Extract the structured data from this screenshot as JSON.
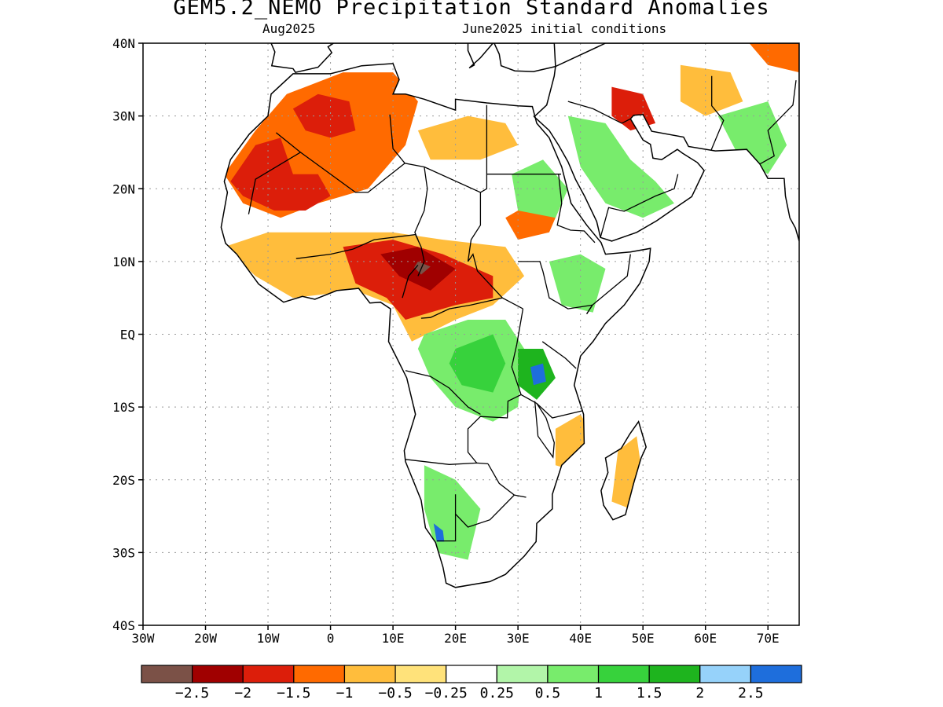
{
  "header": {
    "title": "GEM5.2_NEMO Precipitation Standard Anomalies",
    "month": "Aug2025",
    "init": "June2025 initial conditions"
  },
  "map": {
    "lon_range": [
      -30,
      75
    ],
    "lat_range": [
      -40,
      40
    ],
    "grid": true,
    "lat_labels": [
      {
        "lat": 40,
        "label": "40N"
      },
      {
        "lat": 30,
        "label": "30N"
      },
      {
        "lat": 20,
        "label": "20N"
      },
      {
        "lat": 10,
        "label": "10N"
      },
      {
        "lat": 0,
        "label": "EQ"
      },
      {
        "lat": -10,
        "label": "10S"
      },
      {
        "lat": -20,
        "label": "20S"
      },
      {
        "lat": -30,
        "label": "30S"
      },
      {
        "lat": -40,
        "label": "40S"
      }
    ],
    "lon_labels": [
      {
        "lon": -30,
        "label": "30W"
      },
      {
        "lon": -20,
        "label": "20W"
      },
      {
        "lon": -10,
        "label": "10W"
      },
      {
        "lon": 0,
        "label": "0"
      },
      {
        "lon": 10,
        "label": "10E"
      },
      {
        "lon": 20,
        "label": "20E"
      },
      {
        "lon": 30,
        "label": "30E"
      },
      {
        "lon": 40,
        "label": "40E"
      },
      {
        "lon": 50,
        "label": "50E"
      },
      {
        "lon": 60,
        "label": "60E"
      },
      {
        "lon": 70,
        "label": "70E"
      }
    ],
    "land_fill": "#ffffff",
    "coast_color": "#000000"
  },
  "colorbar": {
    "colors": [
      "#7b5147",
      "#a00000",
      "#dc1e0a",
      "#ff6a00",
      "#ffbd3c",
      "#ffe27a",
      "#ffffff",
      "#b2f5a9",
      "#78ec6c",
      "#37d23c",
      "#1eb41e",
      "#96d2fa",
      "#1e6edc"
    ],
    "labels": [
      "-2.5",
      "-2",
      "-1.5",
      "-1",
      "-0.5",
      "-0.25",
      "0.25",
      "0.5",
      "1",
      "1.5",
      "2",
      "2.5"
    ]
  },
  "anomaly_regions": [
    {
      "level": -1.0,
      "color": "#ff6a00",
      "points": [
        [
          -17,
          22
        ],
        [
          -12,
          28
        ],
        [
          -7,
          33
        ],
        [
          2,
          36
        ],
        [
          10,
          36
        ],
        [
          14,
          32
        ],
        [
          12,
          26
        ],
        [
          6,
          20
        ],
        [
          -2,
          18
        ],
        [
          -8,
          16
        ],
        [
          -14,
          18
        ]
      ]
    },
    {
      "level": -1.5,
      "color": "#dc1e0a",
      "points": [
        [
          -16,
          21
        ],
        [
          -12,
          26
        ],
        [
          -8,
          27
        ],
        [
          -6,
          22
        ],
        [
          -2,
          22
        ],
        [
          0,
          19
        ],
        [
          -4,
          17
        ],
        [
          -9,
          17
        ],
        [
          -14,
          19
        ]
      ]
    },
    {
      "level": -1.5,
      "color": "#dc1e0a",
      "points": [
        [
          -6,
          31
        ],
        [
          -2,
          33
        ],
        [
          3,
          32
        ],
        [
          4,
          28
        ],
        [
          0,
          27
        ],
        [
          -4,
          28
        ]
      ]
    },
    {
      "level": -0.5,
      "color": "#ffbd3c",
      "points": [
        [
          -17,
          12
        ],
        [
          -10,
          14
        ],
        [
          0,
          14
        ],
        [
          10,
          14
        ],
        [
          18,
          13
        ],
        [
          28,
          12
        ],
        [
          31,
          8
        ],
        [
          26,
          4
        ],
        [
          20,
          2
        ],
        [
          13,
          -1
        ],
        [
          10,
          4
        ],
        [
          4,
          6
        ],
        [
          -6,
          5
        ],
        [
          -12,
          8
        ]
      ]
    },
    {
      "level": -1.5,
      "color": "#dc1e0a",
      "points": [
        [
          2,
          12
        ],
        [
          10,
          13
        ],
        [
          18,
          11
        ],
        [
          26,
          8
        ],
        [
          26,
          5
        ],
        [
          20,
          4
        ],
        [
          12,
          2
        ],
        [
          9,
          5
        ],
        [
          4,
          7
        ]
      ]
    },
    {
      "level": -2.0,
      "color": "#a00000",
      "points": [
        [
          8,
          11
        ],
        [
          14,
          12
        ],
        [
          20,
          9
        ],
        [
          16,
          6
        ],
        [
          11,
          8
        ]
      ]
    },
    {
      "level": -2.5,
      "color": "#7b5147",
      "points": [
        [
          14,
          10
        ],
        [
          16,
          9.3
        ],
        [
          14.5,
          8.2
        ],
        [
          13.4,
          9.2
        ]
      ]
    },
    {
      "level": -0.5,
      "color": "#ffbd3c",
      "points": [
        [
          14,
          28
        ],
        [
          22,
          30
        ],
        [
          28,
          29
        ],
        [
          30,
          26
        ],
        [
          24,
          24
        ],
        [
          16,
          24
        ]
      ]
    },
    {
      "level": -1.0,
      "color": "#ff6a00",
      "points": [
        [
          28,
          16
        ],
        [
          34,
          19
        ],
        [
          37,
          18
        ],
        [
          35,
          14
        ],
        [
          30,
          13
        ]
      ]
    },
    {
      "level": 1.0,
      "color": "#78ec6c",
      "points": [
        [
          15,
          0
        ],
        [
          22,
          2
        ],
        [
          28,
          2
        ],
        [
          31,
          -2
        ],
        [
          30,
          -10
        ],
        [
          26,
          -12
        ],
        [
          20,
          -10
        ],
        [
          16,
          -6
        ],
        [
          14,
          -2
        ]
      ]
    },
    {
      "level": 1.5,
      "color": "#37d23c",
      "points": [
        [
          20,
          -2
        ],
        [
          26,
          0
        ],
        [
          28,
          -4
        ],
        [
          26,
          -8
        ],
        [
          21,
          -7
        ],
        [
          19,
          -4
        ]
      ]
    },
    {
      "level": 2.0,
      "color": "#1eb41e",
      "points": [
        [
          30,
          -2
        ],
        [
          34,
          -2
        ],
        [
          36,
          -6
        ],
        [
          33,
          -9
        ],
        [
          30,
          -7
        ]
      ]
    },
    {
      "level": 2.5,
      "color": "#1e6edc",
      "points": [
        [
          32,
          -4.5
        ],
        [
          34,
          -4
        ],
        [
          34.5,
          -6.5
        ],
        [
          32.5,
          -7
        ]
      ]
    },
    {
      "level": 1.0,
      "color": "#78ec6c",
      "points": [
        [
          29,
          22
        ],
        [
          34,
          24
        ],
        [
          38,
          20
        ],
        [
          36,
          16
        ],
        [
          30,
          17
        ]
      ]
    },
    {
      "level": 1.0,
      "color": "#78ec6c",
      "points": [
        [
          38,
          30
        ],
        [
          44,
          29
        ],
        [
          48,
          24
        ],
        [
          52,
          21
        ],
        [
          55,
          18
        ],
        [
          50,
          16
        ],
        [
          44,
          18
        ],
        [
          40,
          23
        ]
      ]
    },
    {
      "level": 1.0,
      "color": "#78ec6c",
      "points": [
        [
          35,
          10
        ],
        [
          40,
          11
        ],
        [
          44,
          9
        ],
        [
          42,
          3
        ],
        [
          37,
          4
        ]
      ]
    },
    {
      "level": -0.5,
      "color": "#ffbd3c",
      "points": [
        [
          36,
          -13
        ],
        [
          40,
          -11
        ],
        [
          42,
          -14
        ],
        [
          40,
          -19
        ],
        [
          36,
          -18
        ]
      ]
    },
    {
      "level": 1.0,
      "color": "#78ec6c",
      "points": [
        [
          15,
          -18
        ],
        [
          20,
          -20
        ],
        [
          24,
          -24
        ],
        [
          22,
          -31
        ],
        [
          17,
          -30
        ],
        [
          15,
          -24
        ]
      ]
    },
    {
      "level": 2.5,
      "color": "#1e6edc",
      "points": [
        [
          16.5,
          -26
        ],
        [
          18,
          -27
        ],
        [
          18.2,
          -28.5
        ],
        [
          17,
          -28.5
        ]
      ]
    },
    {
      "level": -1.5,
      "color": "#dc1e0a",
      "points": [
        [
          45,
          34
        ],
        [
          50,
          33
        ],
        [
          52,
          29
        ],
        [
          48,
          28
        ],
        [
          45,
          30
        ]
      ]
    },
    {
      "level": -0.5,
      "color": "#ffbd3c",
      "points": [
        [
          56,
          37
        ],
        [
          64,
          36
        ],
        [
          66,
          32
        ],
        [
          60,
          30
        ],
        [
          56,
          32
        ]
      ]
    },
    {
      "level": -1.0,
      "color": "#ff6a00",
      "points": [
        [
          67,
          40
        ],
        [
          75,
          40
        ],
        [
          75,
          36
        ],
        [
          70,
          37
        ]
      ]
    },
    {
      "level": 1.0,
      "color": "#78ec6c",
      "points": [
        [
          62,
          30
        ],
        [
          70,
          32
        ],
        [
          73,
          26
        ],
        [
          70,
          22
        ],
        [
          65,
          25
        ]
      ]
    },
    {
      "level": -0.5,
      "color": "#ffbd3c",
      "points": [
        [
          46,
          -16
        ],
        [
          49,
          -14
        ],
        [
          50,
          -20
        ],
        [
          48,
          -24
        ],
        [
          45,
          -23
        ]
      ]
    }
  ]
}
